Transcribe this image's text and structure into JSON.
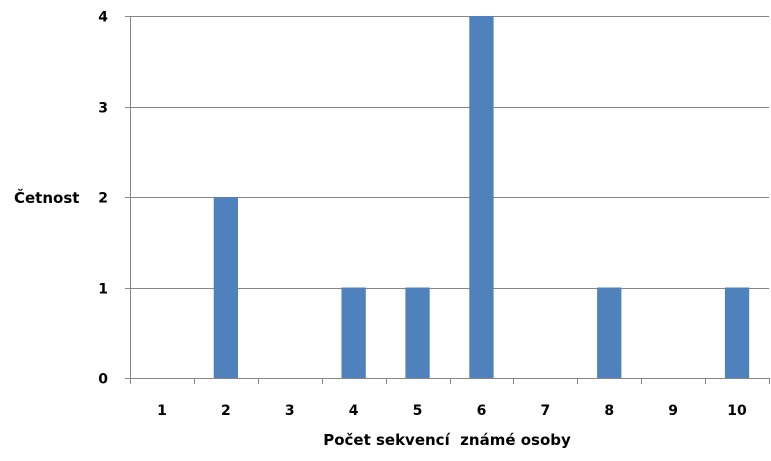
{
  "chart_data": {
    "type": "bar",
    "title": "",
    "xlabel": "Počet sekvencí  známé osoby",
    "ylabel": "Četnost",
    "categories": [
      "1",
      "2",
      "3",
      "4",
      "5",
      "6",
      "7",
      "8",
      "9",
      "10"
    ],
    "values": [
      0,
      2,
      0,
      1,
      1,
      4,
      0,
      1,
      0,
      1
    ],
    "ylim": [
      0,
      4
    ],
    "yticks": [
      0,
      1,
      2,
      3,
      4
    ],
    "grid": true,
    "legend": "none",
    "colors": {
      "bar": "#4F81BD",
      "grid": "#868686",
      "axis": "#868686",
      "text": "#000000"
    }
  }
}
